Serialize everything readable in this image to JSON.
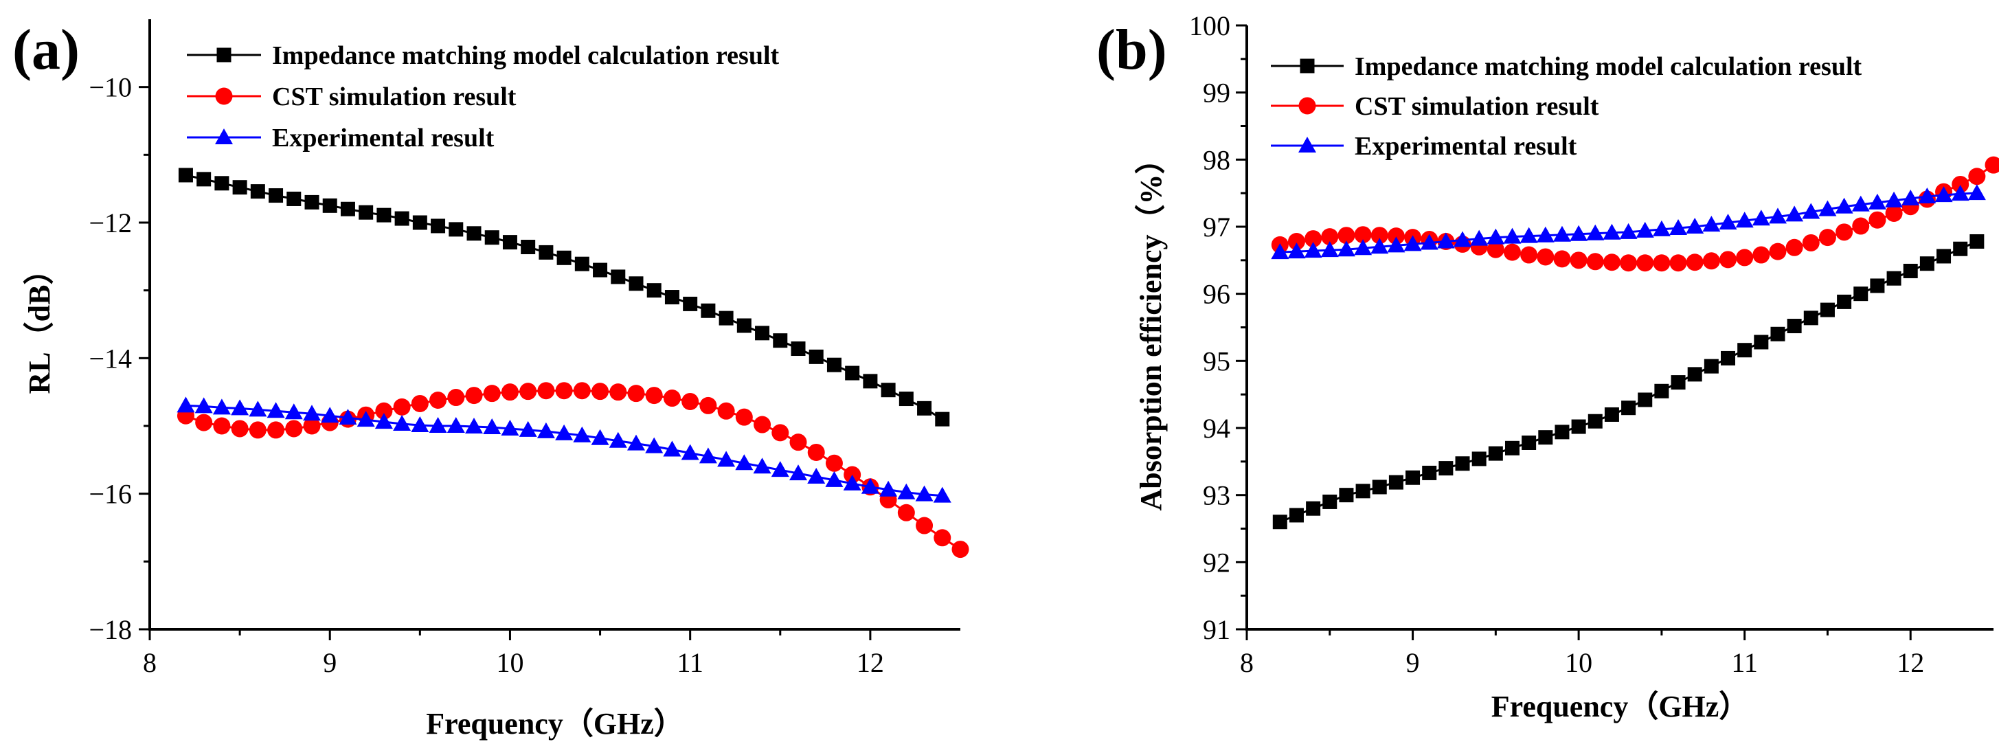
{
  "chart_data": [
    {
      "type": "scatter",
      "panel_label": "(a)",
      "xlabel": "Frequency（GHz）",
      "ylabel": "RL（dB）",
      "xlim": [
        8,
        12.5
      ],
      "ylim": [
        -18,
        -9
      ],
      "xticks": [
        {
          "value": 8,
          "label": "8"
        },
        {
          "value": 9,
          "label": "9"
        },
        {
          "value": 10,
          "label": "10"
        },
        {
          "value": 11,
          "label": "11"
        },
        {
          "value": 12,
          "label": "12"
        }
      ],
      "yticks": [
        {
          "value": -18,
          "label": "−18"
        },
        {
          "value": -16,
          "label": "−16"
        },
        {
          "value": -14,
          "label": "−14"
        },
        {
          "value": -12,
          "label": "−12"
        },
        {
          "value": -10,
          "label": "−10"
        }
      ],
      "legend_position": "top",
      "series": [
        {
          "name": "Impedance matching model calculation result",
          "color": "#000000",
          "marker": "square",
          "x": [
            8.2,
            8.3,
            8.4,
            8.5,
            8.6,
            8.7,
            8.8,
            8.9,
            9.0,
            9.1,
            9.2,
            9.3,
            9.4,
            9.5,
            9.6,
            9.7,
            9.8,
            9.9,
            10.0,
            10.1,
            10.2,
            10.3,
            10.4,
            10.5,
            10.6,
            10.7,
            10.8,
            10.9,
            11.0,
            11.1,
            11.2,
            11.3,
            11.4,
            11.5,
            11.6,
            11.7,
            11.8,
            11.9,
            12.0,
            12.1,
            12.2,
            12.3,
            12.4
          ],
          "y": [
            -11.3,
            -11.36,
            -11.42,
            -11.48,
            -11.54,
            -11.6,
            -11.65,
            -11.7,
            -11.75,
            -11.8,
            -11.85,
            -11.89,
            -11.94,
            -12.0,
            -12.05,
            -12.1,
            -12.16,
            -12.22,
            -12.29,
            -12.36,
            -12.44,
            -12.52,
            -12.61,
            -12.7,
            -12.8,
            -12.9,
            -13.0,
            -13.1,
            -13.2,
            -13.3,
            -13.41,
            -13.52,
            -13.63,
            -13.74,
            -13.86,
            -13.98,
            -14.1,
            -14.22,
            -14.34,
            -14.47,
            -14.6,
            -14.74,
            -14.9
          ]
        },
        {
          "name": "CST simulation result",
          "color": "#ff0000",
          "marker": "circle",
          "x": [
            8.2,
            8.3,
            8.4,
            8.5,
            8.6,
            8.7,
            8.8,
            8.9,
            9.0,
            9.1,
            9.2,
            9.3,
            9.4,
            9.5,
            9.6,
            9.7,
            9.8,
            9.9,
            10.0,
            10.1,
            10.2,
            10.3,
            10.4,
            10.5,
            10.6,
            10.7,
            10.8,
            10.9,
            11.0,
            11.1,
            11.2,
            11.3,
            11.4,
            11.5,
            11.6,
            11.7,
            11.8,
            11.9,
            12.0,
            12.1,
            12.2,
            12.3,
            12.4,
            12.5
          ],
          "y": [
            -14.85,
            -14.95,
            -15.0,
            -15.04,
            -15.06,
            -15.06,
            -15.04,
            -15.0,
            -14.95,
            -14.9,
            -14.84,
            -14.78,
            -14.72,
            -14.67,
            -14.62,
            -14.58,
            -14.55,
            -14.52,
            -14.5,
            -14.49,
            -14.48,
            -14.48,
            -14.48,
            -14.49,
            -14.5,
            -14.52,
            -14.55,
            -14.59,
            -14.64,
            -14.7,
            -14.78,
            -14.87,
            -14.98,
            -15.1,
            -15.24,
            -15.39,
            -15.55,
            -15.72,
            -15.9,
            -16.09,
            -16.28,
            -16.47,
            -16.65,
            -16.82
          ]
        },
        {
          "name": "Experimental result",
          "color": "#0000ff",
          "marker": "triangle",
          "x": [
            8.2,
            8.3,
            8.4,
            8.5,
            8.6,
            8.7,
            8.8,
            8.9,
            9.0,
            9.1,
            9.2,
            9.3,
            9.4,
            9.5,
            9.6,
            9.7,
            9.8,
            9.9,
            10.0,
            10.1,
            10.2,
            10.3,
            10.4,
            10.5,
            10.6,
            10.7,
            10.8,
            10.9,
            11.0,
            11.1,
            11.2,
            11.3,
            11.4,
            11.5,
            11.6,
            11.7,
            11.8,
            11.9,
            12.0,
            12.1,
            12.2,
            12.3,
            12.4
          ],
          "y": [
            -14.7,
            -14.71,
            -14.73,
            -14.74,
            -14.76,
            -14.78,
            -14.8,
            -14.82,
            -14.85,
            -14.88,
            -14.91,
            -14.94,
            -14.97,
            -14.99,
            -15.0,
            -15.0,
            -15.01,
            -15.02,
            -15.04,
            -15.06,
            -15.08,
            -15.11,
            -15.14,
            -15.18,
            -15.22,
            -15.26,
            -15.3,
            -15.35,
            -15.4,
            -15.45,
            -15.5,
            -15.55,
            -15.6,
            -15.65,
            -15.7,
            -15.75,
            -15.8,
            -15.85,
            -15.9,
            -15.94,
            -15.98,
            -16.01,
            -16.03
          ]
        }
      ]
    },
    {
      "type": "scatter",
      "panel_label": "(b)",
      "xlabel": "Frequency（GHz）",
      "ylabel": "Absorption efficiency（%）",
      "xlim": [
        8,
        12.5
      ],
      "ylim": [
        91,
        100
      ],
      "xticks": [
        {
          "value": 8,
          "label": "8"
        },
        {
          "value": 9,
          "label": "9"
        },
        {
          "value": 10,
          "label": "10"
        },
        {
          "value": 11,
          "label": "11"
        },
        {
          "value": 12,
          "label": "12"
        }
      ],
      "yticks": [
        {
          "value": 91,
          "label": "91"
        },
        {
          "value": 92,
          "label": "92"
        },
        {
          "value": 93,
          "label": "93"
        },
        {
          "value": 94,
          "label": "94"
        },
        {
          "value": 95,
          "label": "95"
        },
        {
          "value": 96,
          "label": "96"
        },
        {
          "value": 97,
          "label": "97"
        },
        {
          "value": 98,
          "label": "98"
        },
        {
          "value": 99,
          "label": "99"
        },
        {
          "value": 100,
          "label": "100"
        }
      ],
      "legend_position": "top",
      "series": [
        {
          "name": "Impedance matching model calculation result",
          "color": "#000000",
          "marker": "square",
          "x": [
            8.2,
            8.3,
            8.4,
            8.5,
            8.6,
            8.7,
            8.8,
            8.9,
            9.0,
            9.1,
            9.2,
            9.3,
            9.4,
            9.5,
            9.6,
            9.7,
            9.8,
            9.9,
            10.0,
            10.1,
            10.2,
            10.3,
            10.4,
            10.5,
            10.6,
            10.7,
            10.8,
            10.9,
            11.0,
            11.1,
            11.2,
            11.3,
            11.4,
            11.5,
            11.6,
            11.7,
            11.8,
            11.9,
            12.0,
            12.1,
            12.2,
            12.3,
            12.4
          ],
          "y": [
            92.6,
            92.7,
            92.8,
            92.9,
            93.0,
            93.06,
            93.12,
            93.19,
            93.26,
            93.33,
            93.4,
            93.47,
            93.54,
            93.62,
            93.7,
            93.78,
            93.86,
            93.94,
            94.02,
            94.1,
            94.2,
            94.3,
            94.42,
            94.55,
            94.68,
            94.8,
            94.92,
            95.04,
            95.16,
            95.28,
            95.4,
            95.52,
            95.64,
            95.76,
            95.88,
            96.0,
            96.12,
            96.23,
            96.34,
            96.45,
            96.56,
            96.67,
            96.78
          ]
        },
        {
          "name": "CST simulation result",
          "color": "#ff0000",
          "marker": "circle",
          "x": [
            8.2,
            8.3,
            8.4,
            8.5,
            8.6,
            8.7,
            8.8,
            8.9,
            9.0,
            9.1,
            9.2,
            9.3,
            9.4,
            9.5,
            9.6,
            9.7,
            9.8,
            9.9,
            10.0,
            10.1,
            10.2,
            10.3,
            10.4,
            10.5,
            10.6,
            10.7,
            10.8,
            10.9,
            11.0,
            11.1,
            11.2,
            11.3,
            11.4,
            11.5,
            11.6,
            11.7,
            11.8,
            11.9,
            12.0,
            12.1,
            12.2,
            12.3,
            12.4,
            12.5
          ],
          "y": [
            96.73,
            96.78,
            96.82,
            96.85,
            96.87,
            96.88,
            96.87,
            96.86,
            96.84,
            96.81,
            96.78,
            96.74,
            96.7,
            96.66,
            96.62,
            96.58,
            96.55,
            96.52,
            96.5,
            96.48,
            96.47,
            96.46,
            96.46,
            96.46,
            96.46,
            96.47,
            96.49,
            96.51,
            96.54,
            96.58,
            96.63,
            96.69,
            96.76,
            96.84,
            96.92,
            97.01,
            97.1,
            97.2,
            97.3,
            97.41,
            97.52,
            97.63,
            97.75,
            97.92
          ]
        },
        {
          "name": "Experimental result",
          "color": "#0000ff",
          "marker": "triangle",
          "x": [
            8.2,
            8.3,
            8.4,
            8.5,
            8.6,
            8.7,
            8.8,
            8.9,
            9.0,
            9.1,
            9.2,
            9.3,
            9.4,
            9.5,
            9.6,
            9.7,
            9.8,
            9.9,
            10.0,
            10.1,
            10.2,
            10.3,
            10.4,
            10.5,
            10.6,
            10.7,
            10.8,
            10.9,
            11.0,
            11.1,
            11.2,
            11.3,
            11.4,
            11.5,
            11.6,
            11.7,
            11.8,
            11.9,
            12.0,
            12.1,
            12.2,
            12.3,
            12.4
          ],
          "y": [
            96.62,
            96.63,
            96.64,
            96.65,
            96.66,
            96.68,
            96.7,
            96.72,
            96.74,
            96.76,
            96.78,
            96.8,
            96.82,
            96.84,
            96.85,
            96.86,
            96.87,
            96.88,
            96.89,
            96.9,
            96.91,
            96.92,
            96.94,
            96.96,
            96.98,
            97.0,
            97.03,
            97.06,
            97.09,
            97.12,
            97.15,
            97.18,
            97.22,
            97.26,
            97.3,
            97.33,
            97.36,
            97.39,
            97.42,
            97.45,
            97.47,
            97.49,
            97.5
          ]
        }
      ]
    }
  ]
}
